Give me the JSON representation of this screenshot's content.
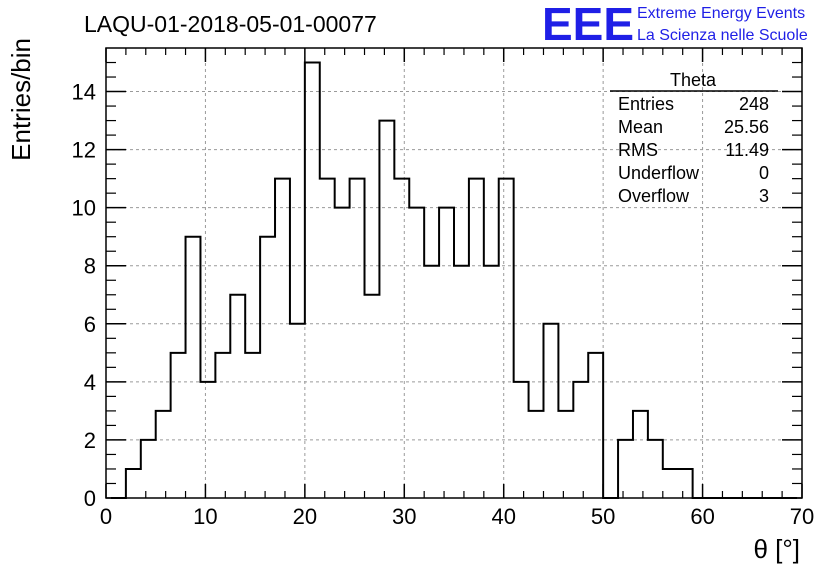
{
  "chart_data": {
    "type": "bar",
    "title": "LAQU-01-2018-05-01-00077",
    "xlabel": "θ [°]",
    "ylabel": "Entries/bin",
    "xlim": [
      0,
      70
    ],
    "ylim": [
      0,
      15.5
    ],
    "xticks": [
      0,
      10,
      20,
      30,
      40,
      50,
      60,
      70
    ],
    "yticks": [
      0,
      2,
      4,
      6,
      8,
      10,
      12,
      14
    ],
    "grid": true,
    "bin_width": 1.5,
    "bin_edges_start": 0.5,
    "values": [
      0,
      1,
      2,
      3,
      5,
      9,
      4,
      5,
      7,
      5,
      9,
      11,
      6,
      15,
      11,
      10,
      11,
      7,
      13,
      11,
      10,
      8,
      10,
      8,
      11,
      8,
      11,
      4,
      3,
      6,
      3,
      4,
      5,
      0,
      2,
      3,
      2,
      1,
      1,
      0,
      0,
      0,
      0,
      0,
      0,
      0
    ],
    "stats": {
      "name": "Theta",
      "rows": [
        {
          "label": "Entries",
          "value": "248"
        },
        {
          "label": "Mean",
          "value": "25.56"
        },
        {
          "label": "RMS",
          "value": "11.49"
        },
        {
          "label": "Underflow",
          "value": "0"
        },
        {
          "label": "Overflow",
          "value": "3"
        }
      ]
    }
  },
  "logo": {
    "mark": "EEE",
    "line1": "Extreme Energy Events",
    "line2": "La Scienza nelle Scuole",
    "color": "#1f1fe6"
  }
}
